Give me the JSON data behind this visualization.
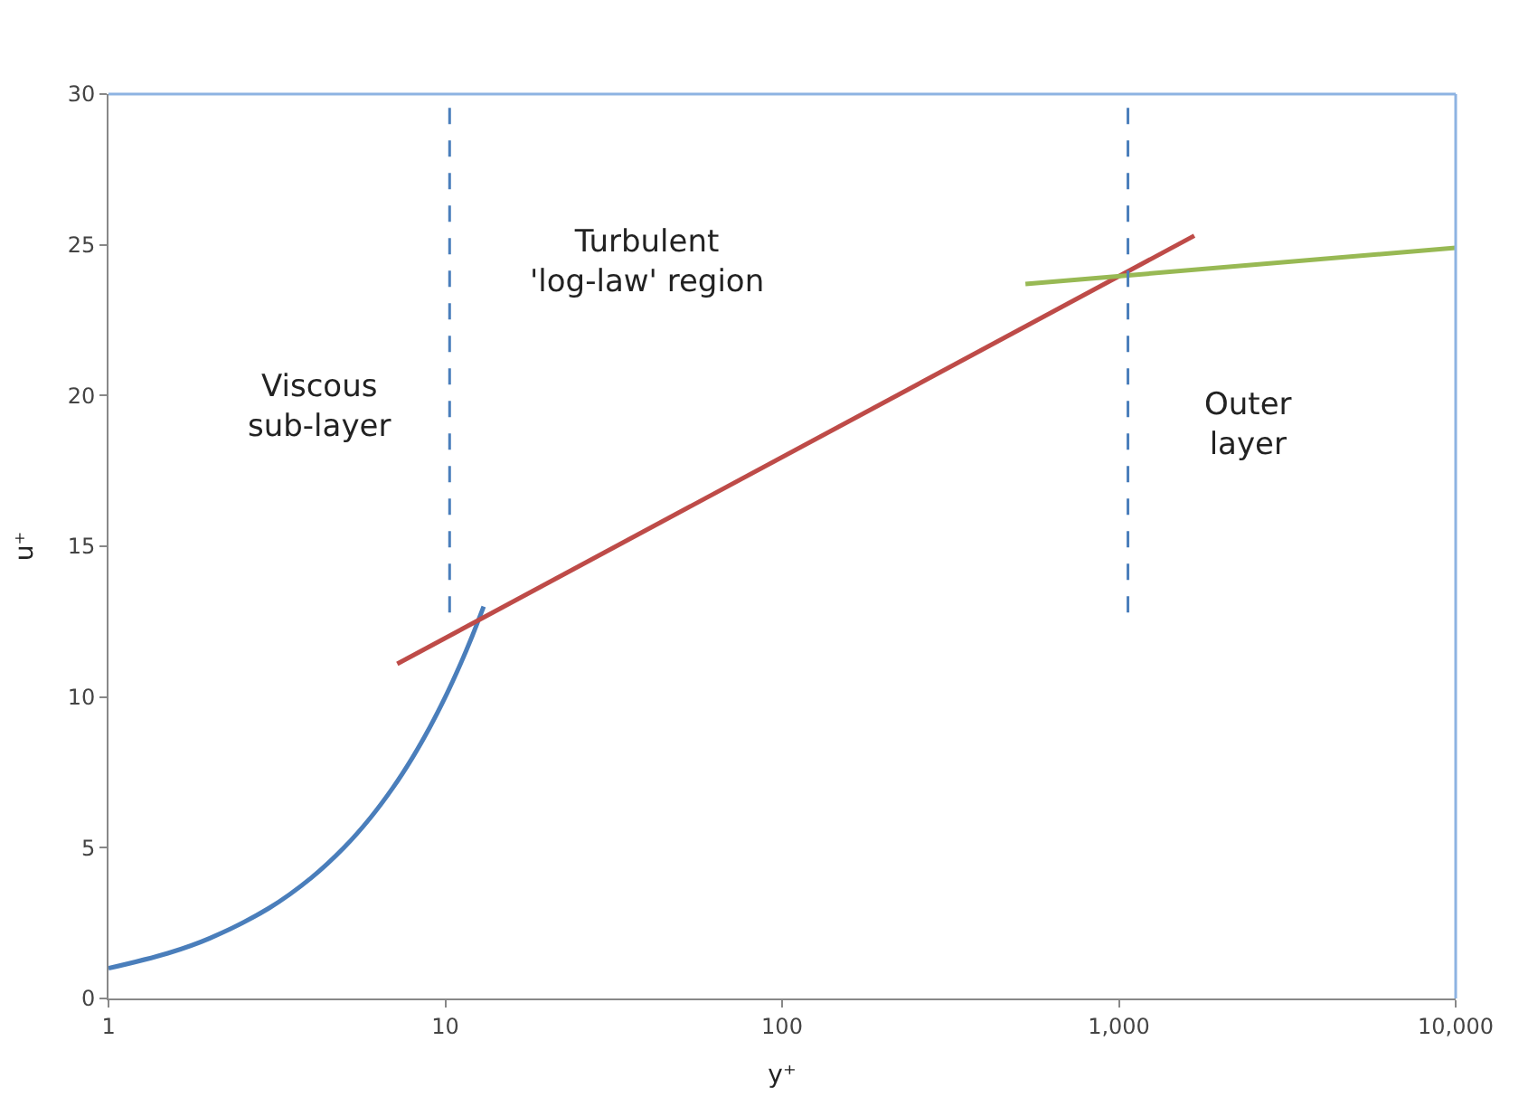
{
  "chart_data": {
    "type": "line",
    "xlabel": "y⁺",
    "ylabel": "u⁺",
    "log": "x",
    "marker": "none",
    "xlim": [
      1,
      10000
    ],
    "xticks": [
      1,
      10,
      100,
      {
        "value": 1000,
        "label": "1,000"
      },
      {
        "value": 10000,
        "label": "10,000"
      }
    ],
    "ylim": [
      0,
      30
    ],
    "yticks": [
      0,
      5,
      10,
      15,
      20,
      25,
      30
    ],
    "series": [
      {
        "color": "#4a7ebb",
        "x": [
          1,
          1.5,
          2,
          3,
          4,
          5,
          6,
          7,
          8,
          9,
          10,
          11,
          12,
          13
        ],
        "values": [
          1,
          1.5,
          2,
          3,
          4,
          5,
          6,
          7,
          8,
          9,
          10,
          11,
          12,
          13
        ]
      },
      {
        "color": "#be4b48",
        "x": [
          7.2,
          1675
        ],
        "values": [
          11.1,
          25.3
        ]
      },
      {
        "color": "#98b954",
        "x": [
          528,
          10000
        ],
        "values": [
          23.7,
          24.9
        ]
      },
      {
        "color": "#4a7ebb",
        "line_style": "dashed",
        "x": [
          10.3,
          10.3
        ],
        "values": [
          12.8,
          30
        ]
      },
      {
        "color": "#4a7ebb",
        "line_style": "dashed",
        "x": [
          1064,
          1064
        ],
        "values": [
          12.8,
          30
        ]
      }
    ],
    "annotations": [
      "Viscous\nsub-layer",
      "Turbulent\n'log-law' region",
      "Outer\nlayer"
    ]
  }
}
